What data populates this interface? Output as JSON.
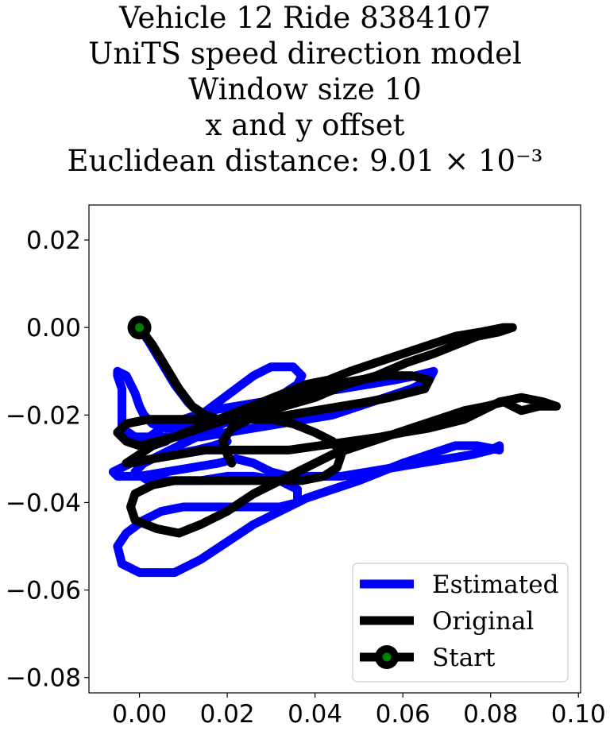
{
  "title_lines": [
    "Vehicle 12 Ride 8384107",
    "UniTS speed direction model",
    "Window size 10",
    "x and y offset",
    "Euclidean distance: 9.01 × 10⁻³"
  ],
  "chart_data": {
    "type": "line",
    "title": "Vehicle 12 Ride 8384107 UniTS speed direction model Window size 10 x and y offset Euclidean distance: 9.01 × 10⁻³",
    "xlabel": "",
    "ylabel": "",
    "xlim": [
      -0.0115,
      0.1005
    ],
    "ylim": [
      -0.0835,
      0.028
    ],
    "grid": false,
    "legend_position": "lower right",
    "x_ticks": [
      {
        "value": 0.0,
        "label": "0.00"
      },
      {
        "value": 0.02,
        "label": "0.02"
      },
      {
        "value": 0.04,
        "label": "0.04"
      },
      {
        "value": 0.06,
        "label": "0.06"
      },
      {
        "value": 0.08,
        "label": "0.08"
      },
      {
        "value": 0.1,
        "label": "0.10"
      }
    ],
    "y_ticks": [
      {
        "value": 0.02,
        "label": "0.02"
      },
      {
        "value": 0.0,
        "label": "0.00"
      },
      {
        "value": -0.02,
        "label": "−0.02"
      },
      {
        "value": -0.04,
        "label": "−0.04"
      },
      {
        "value": -0.06,
        "label": "−0.06"
      },
      {
        "value": -0.08,
        "label": "−0.08"
      }
    ],
    "series": [
      {
        "name": "Estimated",
        "color": "#0000ff",
        "points": [
          [
            0.0,
            0.0
          ],
          [
            0.002,
            -0.003
          ],
          [
            0.005,
            -0.008
          ],
          [
            0.008,
            -0.013
          ],
          [
            0.011,
            -0.017
          ],
          [
            0.014,
            -0.02
          ],
          [
            0.018,
            -0.024
          ],
          [
            0.02,
            -0.026
          ],
          [
            0.017,
            -0.027
          ],
          [
            0.013,
            -0.028
          ],
          [
            0.008,
            -0.029
          ],
          [
            0.003,
            -0.03
          ],
          [
            -0.002,
            -0.031
          ],
          [
            -0.006,
            -0.033
          ],
          [
            -0.005,
            -0.034
          ],
          [
            0.0,
            -0.034
          ],
          [
            0.006,
            -0.033
          ],
          [
            0.012,
            -0.032
          ],
          [
            0.018,
            -0.031
          ],
          [
            0.022,
            -0.03
          ],
          [
            0.026,
            -0.031
          ],
          [
            0.03,
            -0.033
          ],
          [
            0.034,
            -0.034
          ],
          [
            0.04,
            -0.034
          ],
          [
            0.046,
            -0.034
          ],
          [
            0.052,
            -0.033
          ],
          [
            0.058,
            -0.032
          ],
          [
            0.064,
            -0.031
          ],
          [
            0.07,
            -0.03
          ],
          [
            0.076,
            -0.029
          ],
          [
            0.08,
            -0.028
          ],
          [
            0.082,
            -0.027
          ],
          [
            0.082,
            -0.028
          ],
          [
            0.077,
            -0.027
          ],
          [
            0.072,
            -0.027
          ],
          [
            0.066,
            -0.029
          ],
          [
            0.06,
            -0.031
          ],
          [
            0.055,
            -0.033
          ],
          [
            0.05,
            -0.035
          ],
          [
            0.044,
            -0.037
          ],
          [
            0.038,
            -0.039
          ],
          [
            0.032,
            -0.042
          ],
          [
            0.026,
            -0.045
          ],
          [
            0.02,
            -0.049
          ],
          [
            0.014,
            -0.053
          ],
          [
            0.008,
            -0.056
          ],
          [
            0.0,
            -0.056
          ],
          [
            -0.004,
            -0.054
          ],
          [
            -0.005,
            -0.05
          ],
          [
            -0.003,
            -0.047
          ],
          [
            0.001,
            -0.044
          ],
          [
            0.005,
            -0.042
          ],
          [
            0.01,
            -0.041
          ],
          [
            0.015,
            -0.041
          ],
          [
            0.02,
            -0.041
          ],
          [
            0.026,
            -0.041
          ],
          [
            0.032,
            -0.041
          ],
          [
            0.036,
            -0.04
          ],
          [
            0.036,
            -0.037
          ],
          [
            0.032,
            -0.035
          ],
          [
            0.026,
            -0.034
          ],
          [
            0.02,
            -0.034
          ],
          [
            0.014,
            -0.035
          ],
          [
            0.008,
            -0.035
          ],
          [
            0.002,
            -0.035
          ],
          [
            -0.001,
            -0.033
          ],
          [
            0.001,
            -0.031
          ],
          [
            0.005,
            -0.029
          ],
          [
            0.009,
            -0.027
          ],
          [
            0.013,
            -0.025
          ],
          [
            0.017,
            -0.023
          ],
          [
            0.021,
            -0.021
          ],
          [
            0.025,
            -0.019
          ],
          [
            0.029,
            -0.017
          ],
          [
            0.033,
            -0.015
          ],
          [
            0.036,
            -0.013
          ],
          [
            0.037,
            -0.011
          ],
          [
            0.035,
            -0.009
          ],
          [
            0.03,
            -0.009
          ],
          [
            0.026,
            -0.011
          ],
          [
            0.022,
            -0.014
          ],
          [
            0.018,
            -0.017
          ],
          [
            0.014,
            -0.02
          ],
          [
            0.01,
            -0.023
          ],
          [
            0.006,
            -0.026
          ],
          [
            0.003,
            -0.027
          ],
          [
            0.001,
            -0.026
          ],
          [
            0.005,
            -0.023
          ],
          [
            0.01,
            -0.021
          ],
          [
            0.016,
            -0.019
          ],
          [
            0.022,
            -0.018
          ],
          [
            0.028,
            -0.017
          ],
          [
            0.034,
            -0.016
          ],
          [
            0.04,
            -0.015
          ],
          [
            0.046,
            -0.014
          ],
          [
            0.052,
            -0.013
          ],
          [
            0.058,
            -0.012
          ],
          [
            0.063,
            -0.011
          ],
          [
            0.067,
            -0.01
          ],
          [
            0.066,
            -0.012
          ],
          [
            0.062,
            -0.014
          ],
          [
            0.056,
            -0.016
          ],
          [
            0.05,
            -0.018
          ],
          [
            0.044,
            -0.02
          ],
          [
            0.038,
            -0.021
          ],
          [
            0.032,
            -0.022
          ],
          [
            0.026,
            -0.023
          ],
          [
            0.02,
            -0.024
          ],
          [
            0.014,
            -0.025
          ],
          [
            0.008,
            -0.025
          ],
          [
            0.003,
            -0.025
          ],
          [
            -0.001,
            -0.025
          ],
          [
            -0.004,
            -0.023
          ],
          [
            -0.004,
            -0.018
          ],
          [
            -0.004,
            -0.014
          ],
          [
            -0.005,
            -0.011
          ],
          [
            -0.005,
            -0.01
          ],
          [
            -0.003,
            -0.011
          ],
          [
            -0.002,
            -0.013
          ],
          [
            -0.001,
            -0.015
          ],
          [
            0.0,
            -0.018
          ],
          [
            0.001,
            -0.02
          ],
          [
            0.003,
            -0.022
          ],
          [
            0.006,
            -0.023
          ],
          [
            0.01,
            -0.023
          ]
        ]
      },
      {
        "name": "Original",
        "color": "#000000",
        "points": [
          [
            0.0,
            0.0
          ],
          [
            0.003,
            -0.004
          ],
          [
            0.006,
            -0.009
          ],
          [
            0.009,
            -0.014
          ],
          [
            0.012,
            -0.018
          ],
          [
            0.015,
            -0.02
          ],
          [
            0.018,
            -0.021
          ],
          [
            0.022,
            -0.021
          ],
          [
            0.027,
            -0.02
          ],
          [
            0.033,
            -0.018
          ],
          [
            0.04,
            -0.016
          ],
          [
            0.047,
            -0.013
          ],
          [
            0.054,
            -0.011
          ],
          [
            0.061,
            -0.008
          ],
          [
            0.067,
            -0.006
          ],
          [
            0.072,
            -0.004
          ],
          [
            0.077,
            -0.002
          ],
          [
            0.082,
            -0.001
          ],
          [
            0.085,
            0.0
          ],
          [
            0.083,
            0.0
          ],
          [
            0.078,
            -0.001
          ],
          [
            0.072,
            -0.002
          ],
          [
            0.066,
            -0.004
          ],
          [
            0.06,
            -0.006
          ],
          [
            0.054,
            -0.008
          ],
          [
            0.048,
            -0.01
          ],
          [
            0.043,
            -0.012
          ],
          [
            0.038,
            -0.013
          ],
          [
            0.033,
            -0.015
          ],
          [
            0.028,
            -0.017
          ],
          [
            0.023,
            -0.019
          ],
          [
            0.018,
            -0.021
          ],
          [
            0.013,
            -0.023
          ],
          [
            0.008,
            -0.025
          ],
          [
            0.004,
            -0.026
          ],
          [
            0.0,
            -0.027
          ],
          [
            -0.003,
            -0.026
          ],
          [
            -0.005,
            -0.024
          ],
          [
            -0.003,
            -0.022
          ],
          [
            0.002,
            -0.021
          ],
          [
            0.007,
            -0.021
          ],
          [
            0.012,
            -0.021
          ],
          [
            0.017,
            -0.021
          ],
          [
            0.022,
            -0.021
          ],
          [
            0.028,
            -0.021
          ],
          [
            0.034,
            -0.02
          ],
          [
            0.04,
            -0.019
          ],
          [
            0.046,
            -0.018
          ],
          [
            0.052,
            -0.017
          ],
          [
            0.057,
            -0.016
          ],
          [
            0.061,
            -0.015
          ],
          [
            0.065,
            -0.014
          ],
          [
            0.066,
            -0.012
          ],
          [
            0.062,
            -0.011
          ],
          [
            0.056,
            -0.011
          ],
          [
            0.05,
            -0.012
          ],
          [
            0.044,
            -0.013
          ],
          [
            0.038,
            -0.015
          ],
          [
            0.032,
            -0.017
          ],
          [
            0.026,
            -0.019
          ],
          [
            0.02,
            -0.021
          ],
          [
            0.014,
            -0.023
          ],
          [
            0.008,
            -0.025
          ],
          [
            0.003,
            -0.027
          ],
          [
            0.0,
            -0.029
          ],
          [
            -0.003,
            -0.031
          ],
          [
            -0.002,
            -0.031
          ],
          [
            0.003,
            -0.03
          ],
          [
            0.009,
            -0.029
          ],
          [
            0.015,
            -0.028
          ],
          [
            0.021,
            -0.028
          ],
          [
            0.027,
            -0.028
          ],
          [
            0.034,
            -0.028
          ],
          [
            0.041,
            -0.027
          ],
          [
            0.048,
            -0.026
          ],
          [
            0.055,
            -0.025
          ],
          [
            0.06,
            -0.024
          ],
          [
            0.066,
            -0.023
          ],
          [
            0.07,
            -0.022
          ],
          [
            0.074,
            -0.021
          ],
          [
            0.078,
            -0.019
          ],
          [
            0.082,
            -0.017
          ],
          [
            0.087,
            -0.016
          ],
          [
            0.092,
            -0.017
          ],
          [
            0.095,
            -0.018
          ],
          [
            0.091,
            -0.018
          ],
          [
            0.087,
            -0.019
          ],
          [
            0.085,
            -0.018
          ],
          [
            0.083,
            -0.017
          ],
          [
            0.079,
            -0.018
          ],
          [
            0.074,
            -0.019
          ],
          [
            0.068,
            -0.021
          ],
          [
            0.062,
            -0.023
          ],
          [
            0.056,
            -0.025
          ],
          [
            0.05,
            -0.027
          ],
          [
            0.044,
            -0.029
          ],
          [
            0.038,
            -0.032
          ],
          [
            0.032,
            -0.035
          ],
          [
            0.026,
            -0.038
          ],
          [
            0.02,
            -0.042
          ],
          [
            0.014,
            -0.045
          ],
          [
            0.009,
            -0.047
          ],
          [
            0.004,
            -0.046
          ],
          [
            -0.001,
            -0.044
          ],
          [
            -0.002,
            -0.041
          ],
          [
            -0.001,
            -0.038
          ],
          [
            0.003,
            -0.036
          ],
          [
            0.008,
            -0.035
          ],
          [
            0.014,
            -0.035
          ],
          [
            0.02,
            -0.035
          ],
          [
            0.026,
            -0.035
          ],
          [
            0.032,
            -0.035
          ],
          [
            0.037,
            -0.035
          ],
          [
            0.042,
            -0.034
          ],
          [
            0.045,
            -0.032
          ],
          [
            0.046,
            -0.029
          ],
          [
            0.044,
            -0.026
          ],
          [
            0.04,
            -0.024
          ],
          [
            0.035,
            -0.022
          ],
          [
            0.03,
            -0.021
          ],
          [
            0.025,
            -0.021
          ],
          [
            0.021,
            -0.023
          ],
          [
            0.019,
            -0.026
          ],
          [
            0.02,
            -0.029
          ],
          [
            0.021,
            -0.031
          ]
        ]
      },
      {
        "name": "Start",
        "color": "#008000",
        "marker_edge_color": "#000000",
        "points": [
          [
            0.0,
            0.0
          ]
        ]
      }
    ],
    "legend": [
      {
        "label": "Estimated",
        "color": "#0000ff",
        "marker": false
      },
      {
        "label": "Original",
        "color": "#000000",
        "marker": false
      },
      {
        "label": "Start",
        "color": "#000000",
        "marker": true,
        "marker_face": "#008000"
      }
    ]
  }
}
